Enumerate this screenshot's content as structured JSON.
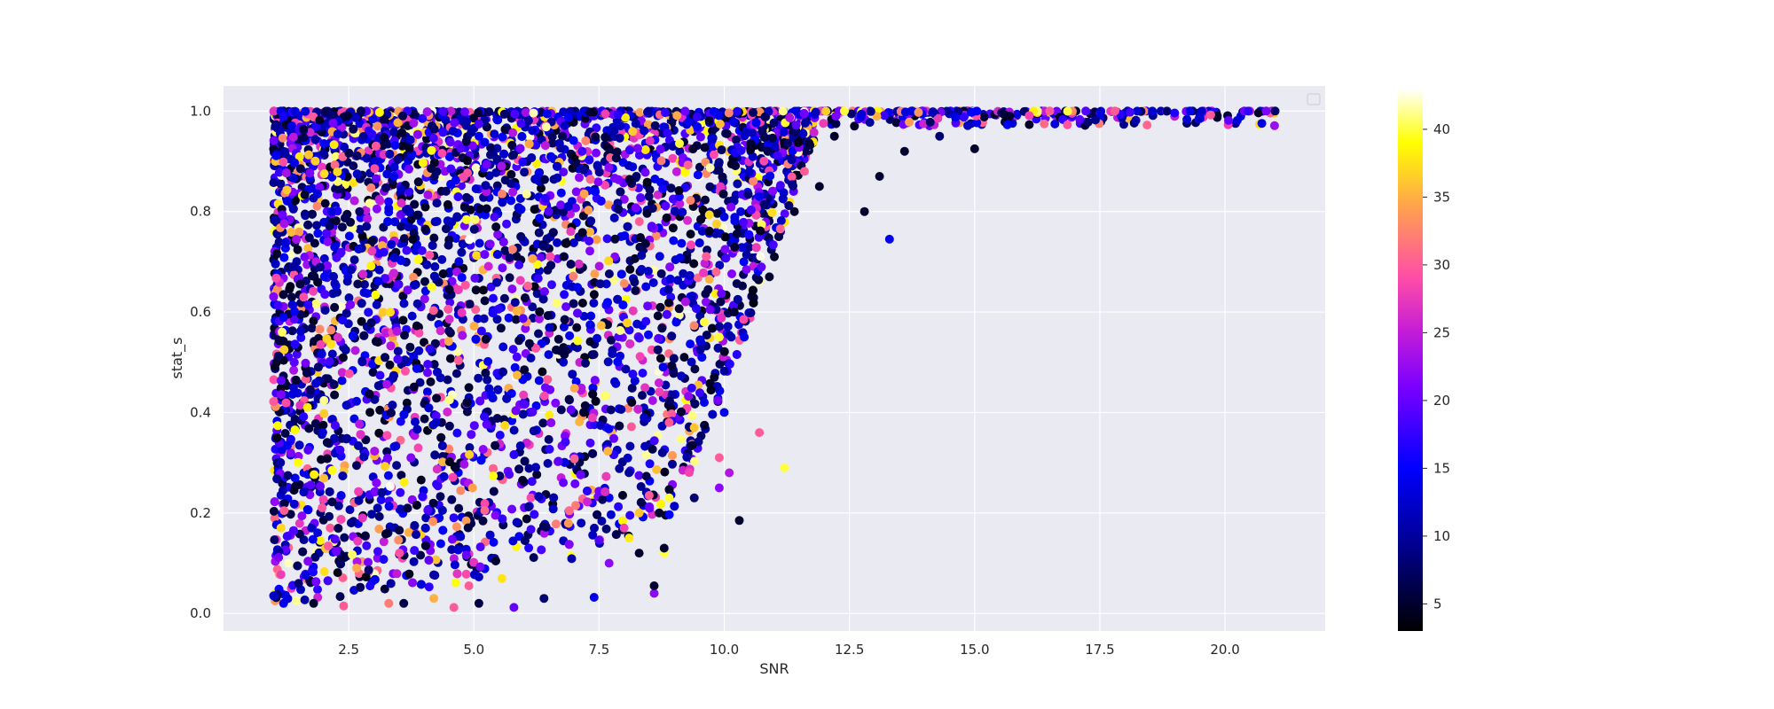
{
  "chart_data": {
    "type": "scatter",
    "title": "",
    "xlabel": "SNR",
    "ylabel": "stat_s",
    "xlim": [
      0.0,
      22.0
    ],
    "ylim": [
      -0.035,
      1.05
    ],
    "x_ticks": [
      2.5,
      5.0,
      7.5,
      10.0,
      12.5,
      15.0,
      17.5,
      20.0
    ],
    "x_tick_labels": [
      "2.5",
      "5.0",
      "7.5",
      "10.0",
      "12.5",
      "15.0",
      "17.5",
      "20.0"
    ],
    "y_ticks": [
      0.0,
      0.2,
      0.4,
      0.6,
      0.8,
      1.0
    ],
    "y_tick_labels": [
      "0.0",
      "0.2",
      "0.4",
      "0.6",
      "0.8",
      "1.0"
    ],
    "grid": true,
    "legend": {
      "placement": "top-right",
      "entries": []
    },
    "colorbar": {
      "colormap": "gnuplot2",
      "range": [
        3,
        43
      ],
      "ticks": [
        5,
        10,
        15,
        20,
        25,
        30,
        35,
        40
      ],
      "tick_labels": [
        "5",
        "10",
        "15",
        "20",
        "25",
        "30",
        "35",
        "40"
      ]
    },
    "points": [
      {
        "x": 1.0,
        "y": 0.035,
        "c": 12
      },
      {
        "x": 1.2,
        "y": 0.02,
        "c": 14
      },
      {
        "x": 1.3,
        "y": 0.1,
        "c": 42
      },
      {
        "x": 1.5,
        "y": 0.06,
        "c": 8
      },
      {
        "x": 1.8,
        "y": 0.02,
        "c": 5
      },
      {
        "x": 2.4,
        "y": 0.015,
        "c": 30
      },
      {
        "x": 3.3,
        "y": 0.02,
        "c": 32
      },
      {
        "x": 3.6,
        "y": 0.02,
        "c": 6
      },
      {
        "x": 4.6,
        "y": 0.012,
        "c": 30
      },
      {
        "x": 5.1,
        "y": 0.02,
        "c": 6
      },
      {
        "x": 5.8,
        "y": 0.012,
        "c": 20
      },
      {
        "x": 4.2,
        "y": 0.03,
        "c": 35
      },
      {
        "x": 4.9,
        "y": 0.055,
        "c": 30
      },
      {
        "x": 6.4,
        "y": 0.03,
        "c": 8
      },
      {
        "x": 7.4,
        "y": 0.032,
        "c": 14
      },
      {
        "x": 8.6,
        "y": 0.04,
        "c": 22
      },
      {
        "x": 8.6,
        "y": 0.055,
        "c": 5
      },
      {
        "x": 7.7,
        "y": 0.1,
        "c": 22
      },
      {
        "x": 8.3,
        "y": 0.12,
        "c": 5
      },
      {
        "x": 8.8,
        "y": 0.12,
        "c": 40
      },
      {
        "x": 8.8,
        "y": 0.13,
        "c": 5
      },
      {
        "x": 8.0,
        "y": 0.17,
        "c": 28
      },
      {
        "x": 8.1,
        "y": 0.15,
        "c": 38
      },
      {
        "x": 8.3,
        "y": 0.2,
        "c": 36
      },
      {
        "x": 8.7,
        "y": 0.2,
        "c": 5
      },
      {
        "x": 8.9,
        "y": 0.23,
        "c": 40
      },
      {
        "x": 8.5,
        "y": 0.235,
        "c": 30
      },
      {
        "x": 9.4,
        "y": 0.23,
        "c": 8
      },
      {
        "x": 9.9,
        "y": 0.25,
        "c": 22
      },
      {
        "x": 10.1,
        "y": 0.28,
        "c": 24
      },
      {
        "x": 9.9,
        "y": 0.31,
        "c": 30
      },
      {
        "x": 10.3,
        "y": 0.185,
        "c": 5
      },
      {
        "x": 11.2,
        "y": 0.29,
        "c": 40
      },
      {
        "x": 10.7,
        "y": 0.36,
        "c": 30
      },
      {
        "x": 9.4,
        "y": 0.37,
        "c": 36
      },
      {
        "x": 8.9,
        "y": 0.38,
        "c": 30
      },
      {
        "x": 8.4,
        "y": 0.39,
        "c": 12
      },
      {
        "x": 9.6,
        "y": 0.42,
        "c": 14
      },
      {
        "x": 10.0,
        "y": 0.4,
        "c": 14
      },
      {
        "x": 9.8,
        "y": 0.47,
        "c": 5
      },
      {
        "x": 9.2,
        "y": 0.51,
        "c": 5
      },
      {
        "x": 9.9,
        "y": 0.55,
        "c": 40
      },
      {
        "x": 10.4,
        "y": 0.55,
        "c": 14
      },
      {
        "x": 9.6,
        "y": 0.58,
        "c": 40
      },
      {
        "x": 10.2,
        "y": 0.6,
        "c": 5
      },
      {
        "x": 10.9,
        "y": 0.67,
        "c": 5
      },
      {
        "x": 11.0,
        "y": 0.71,
        "c": 5
      },
      {
        "x": 12.8,
        "y": 0.8,
        "c": 5
      },
      {
        "x": 13.3,
        "y": 0.745,
        "c": 14
      },
      {
        "x": 13.1,
        "y": 0.87,
        "c": 5
      },
      {
        "x": 13.6,
        "y": 0.92,
        "c": 5
      },
      {
        "x": 15.0,
        "y": 0.925,
        "c": 5
      },
      {
        "x": 14.3,
        "y": 0.95,
        "c": 8
      },
      {
        "x": 12.2,
        "y": 0.95,
        "c": 5
      },
      {
        "x": 11.9,
        "y": 0.85,
        "c": 5
      },
      {
        "x": 11.6,
        "y": 0.88,
        "c": 30
      },
      {
        "x": 12.6,
        "y": 0.97,
        "c": 5
      },
      {
        "x": 11.4,
        "y": 0.8,
        "c": 5
      },
      {
        "x": 10.7,
        "y": 0.83,
        "c": 14
      },
      {
        "x": 15.7,
        "y": 0.99,
        "c": 5
      },
      {
        "x": 12.4,
        "y": 1.0,
        "c": 40
      },
      {
        "x": 16.5,
        "y": 1.0,
        "c": 30
      },
      {
        "x": 17.8,
        "y": 1.0,
        "c": 30
      },
      {
        "x": 19.3,
        "y": 1.0,
        "c": 14
      },
      {
        "x": 21.0,
        "y": 1.0,
        "c": 8
      }
    ],
    "dense_regions": [
      {
        "x": [
          1.0,
          11.8
        ],
        "y": [
          0.05,
          1.0
        ],
        "description": "thousands of overlapping points filling the left/upper region under an envelope that narrows as SNR increases; colors mostly 5-20 with scattered 25-42"
      },
      {
        "x": [
          11.8,
          21.0
        ],
        "y": [
          0.97,
          1.0
        ],
        "description": "dense row of points saturated near stat_s = 1.0"
      }
    ]
  }
}
